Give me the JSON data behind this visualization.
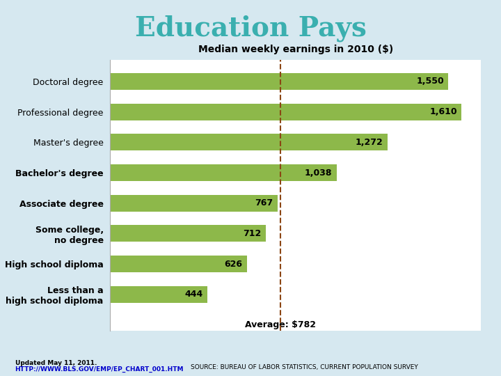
{
  "title": "Education Pays",
  "chart_title": "Median weekly earnings in 2010 ($)",
  "categories": [
    "Doctoral degree",
    "Professional degree",
    "Master's degree",
    "Bachelor's degree",
    "Associate degree",
    "Some college,\nno degree",
    "High school diploma",
    "Less than a\nhigh school diploma"
  ],
  "values": [
    1550,
    1610,
    1272,
    1038,
    767,
    712,
    626,
    444
  ],
  "bar_color": "#8db84a",
  "average": 782,
  "average_label": "Average: $782",
  "average_line_color": "#8b4513",
  "xlim": [
    0,
    1700
  ],
  "background_color": "#d6e8f0",
  "chart_bg": "#ffffff",
  "title_color": "#3aafaf",
  "chart_title_color": "#000000",
  "value_label_fontsize": 9,
  "category_fontsize": 9,
  "footer_text": "Updated May 11, 2011.",
  "footer_url": "HTTP://WWW.BLS.GOV/EMP/EP_CHART_001.HTM",
  "footer_source": "SOURCE: BUREAU OF LABOR STATISTICS, CURRENT POPULATION SURVEY"
}
